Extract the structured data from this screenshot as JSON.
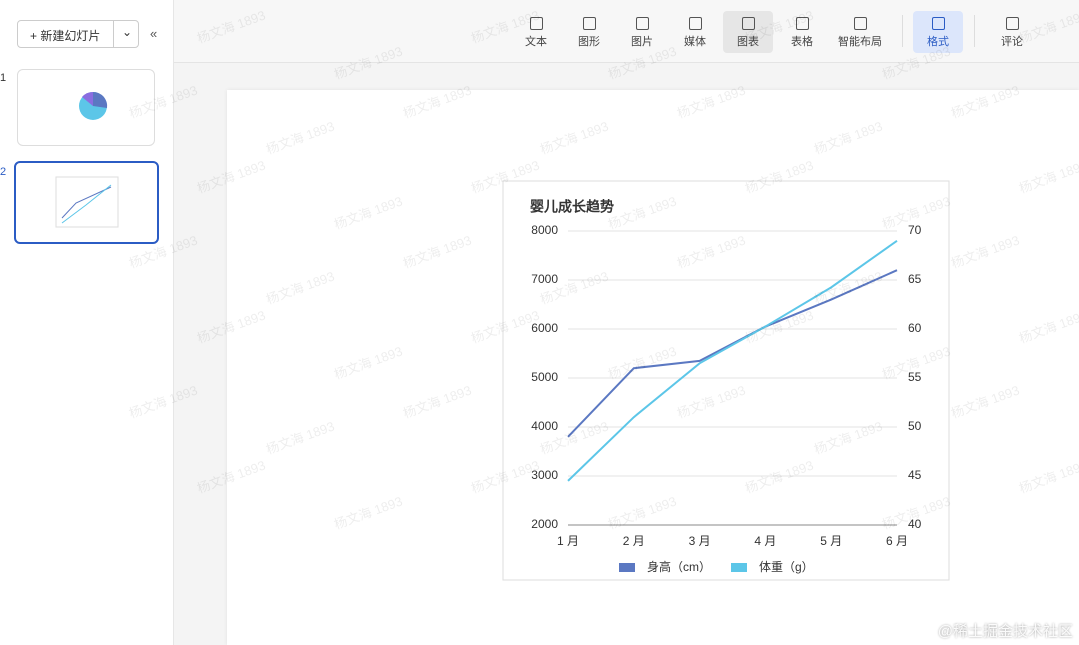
{
  "ui": {
    "new_slide": "新建幻灯片",
    "slide_numbers": [
      "1",
      "2"
    ],
    "toolbar": [
      "文本",
      "图形",
      "图片",
      "媒体",
      "图表",
      "表格",
      "智能布局",
      "格式",
      "评论"
    ],
    "watermark": "杨文海 1893",
    "credit": "@稀土掘金技术社区"
  },
  "chart_data": {
    "type": "line",
    "title": "婴儿成长趋势",
    "categories": [
      "1 月",
      "2 月",
      "3 月",
      "4 月",
      "5 月",
      "6 月"
    ],
    "series": [
      {
        "name": "身高（cm）",
        "color": "#5b78c2",
        "axis": "y2",
        "values": [
          49,
          56,
          56.75,
          60.25,
          63,
          66
        ]
      },
      {
        "name": "体重（g）",
        "color": "#5cc6e8",
        "values": [
          2900,
          4200,
          5300,
          6050,
          6850,
          7800
        ]
      }
    ],
    "ylim": [
      2000,
      8000
    ],
    "yticks": [
      2000,
      3000,
      4000,
      5000,
      6000,
      7000,
      8000
    ],
    "y2lim": [
      40,
      70
    ],
    "y2ticks": [
      40,
      45,
      50,
      55,
      60,
      65,
      70
    ],
    "grid": true,
    "legend": "bottom"
  }
}
